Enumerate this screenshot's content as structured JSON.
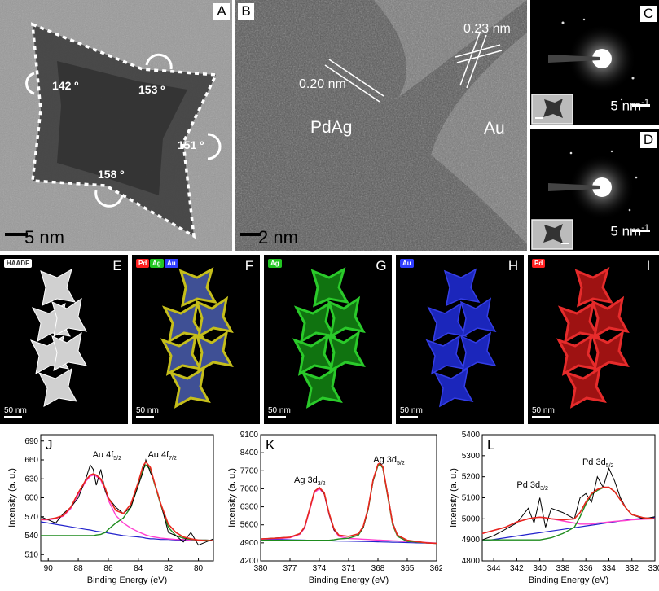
{
  "panels": {
    "A": {
      "label": "A",
      "scale": "5 nm",
      "angles": [
        "142 º",
        "153 º",
        "151 º",
        "158 º"
      ]
    },
    "B": {
      "label": "B",
      "scale": "2 nm",
      "phase_left": "PdAg",
      "phase_right": "Au",
      "d1": "0.20 nm",
      "d2": "0.23 nm"
    },
    "C": {
      "label": "C",
      "scale": "5 nm",
      "scale_sup": "-1"
    },
    "D": {
      "label": "D",
      "scale": "5 nm",
      "scale_sup": "-1"
    },
    "E": {
      "label": "E",
      "tag": "HAADF",
      "scale": "50 nm"
    },
    "F": {
      "label": "F",
      "tags": [
        "Pd",
        "Ag",
        "Au"
      ],
      "scale": "50 nm"
    },
    "G": {
      "label": "G",
      "tag": "Ag",
      "scale": "50 nm"
    },
    "H": {
      "label": "H",
      "tag": "Au",
      "scale": "50 nm"
    },
    "I": {
      "label": "I",
      "tag": "Pd",
      "scale": "50 nm"
    },
    "J": {
      "label": "J"
    },
    "K": {
      "label": "K"
    },
    "L": {
      "label": "L"
    }
  },
  "colors": {
    "ag_green": "#22c522",
    "au_blue": "#2f3dff",
    "pd_red": "#ff2020",
    "fit_red": "#e8281e",
    "peak_magenta": "#ff3fd0",
    "peak_green": "#1e8c1e",
    "bg_blue": "#2222cc"
  },
  "chart_data": [
    {
      "type": "line",
      "panel": "J",
      "xlabel": "Binding Energy (eV)",
      "ylabel": "Intensity (a. u.)",
      "xlim": [
        90.5,
        79
      ],
      "ylim": [
        500,
        700
      ],
      "xticks": [
        "90",
        "88",
        "86",
        "84",
        "82",
        "80"
      ],
      "yticks": [
        "510",
        "540",
        "570",
        "600",
        "630",
        "660",
        "690"
      ],
      "annotations": [
        {
          "text": "Au 4f",
          "sub": "5/2"
        },
        {
          "text": "Au 4f",
          "sub": "7/2"
        }
      ],
      "x": [
        90.5,
        90,
        89.5,
        89,
        88.5,
        88,
        87.5,
        87.2,
        87,
        86.8,
        86.5,
        86.2,
        86,
        85.5,
        85,
        84.5,
        84,
        83.7,
        83.5,
        83.2,
        83,
        82.5,
        82,
        81.5,
        81,
        80.5,
        80,
        79.5,
        79
      ],
      "raw": [
        570,
        565,
        560,
        575,
        585,
        600,
        630,
        652,
        645,
        620,
        645,
        610,
        600,
        585,
        575,
        585,
        620,
        640,
        660,
        640,
        630,
        590,
        545,
        540,
        530,
        545,
        525,
        530,
        535
      ],
      "fit": [
        566,
        566,
        568,
        572,
        585,
        608,
        628,
        636,
        638,
        636,
        630,
        615,
        600,
        580,
        575,
        590,
        625,
        650,
        657,
        648,
        630,
        590,
        558,
        545,
        538,
        535,
        533,
        532,
        532
      ],
      "peak1": [
        565,
        565,
        567,
        571,
        583,
        605,
        626,
        634,
        636,
        634,
        628,
        612,
        596,
        572,
        560,
        552,
        546,
        543,
        541,
        539,
        538,
        536,
        535,
        534,
        534,
        533,
        533,
        533,
        532
      ],
      "peak2": [
        540,
        540,
        540,
        540,
        540,
        540,
        540,
        540,
        540,
        541,
        542,
        545,
        550,
        560,
        568,
        585,
        620,
        645,
        652,
        645,
        628,
        588,
        553,
        540,
        536,
        534,
        533,
        533,
        532
      ],
      "background": [
        562,
        560,
        558,
        556,
        554,
        552,
        550,
        549,
        548,
        547,
        546,
        545,
        544,
        542,
        540,
        539,
        538,
        537,
        536,
        535,
        535,
        534,
        534,
        533,
        533,
        533,
        532,
        532,
        532
      ]
    },
    {
      "type": "line",
      "panel": "K",
      "xlabel": "Binding Energy (eV)",
      "ylabel": "Intensity (a. u.)",
      "xlim": [
        380,
        362
      ],
      "ylim": [
        4200,
        9100
      ],
      "xticks": [
        "380",
        "377",
        "374",
        "371",
        "368",
        "365",
        "362"
      ],
      "yticks": [
        "4200",
        "4900",
        "5600",
        "6300",
        "7000",
        "7700",
        "8400",
        "9100"
      ],
      "annotations": [
        {
          "text": "Ag 3d",
          "sub": "3/2"
        },
        {
          "text": "Ag 3d",
          "sub": "5/2"
        }
      ],
      "x": [
        380,
        379,
        378,
        377,
        376,
        375.5,
        375,
        374.5,
        374,
        373.5,
        373,
        372.5,
        372,
        371,
        370,
        369.5,
        369,
        368.5,
        368,
        367.8,
        367.5,
        367,
        366.5,
        366,
        365,
        364,
        363,
        362
      ],
      "raw": [
        5050,
        5080,
        5100,
        5120,
        5250,
        5500,
        6200,
        6900,
        7050,
        6800,
        6000,
        5400,
        5200,
        5150,
        5250,
        5500,
        6200,
        7300,
        7950,
        8000,
        7850,
        6800,
        5700,
        5200,
        5000,
        4950,
        4900,
        4880
      ],
      "fit": [
        5050,
        5070,
        5090,
        5120,
        5260,
        5520,
        6200,
        6900,
        7050,
        6850,
        6050,
        5450,
        5200,
        5150,
        5250,
        5550,
        6250,
        7350,
        7950,
        8000,
        7850,
        6750,
        5650,
        5200,
        5000,
        4950,
        4900,
        4880
      ],
      "peak1": [
        5050,
        5060,
        5070,
        5100,
        5230,
        5480,
        6150,
        6850,
        7000,
        6800,
        6000,
        5400,
        5150,
        5070,
        5050,
        5040,
        5030,
        5020,
        5010,
        5005,
        5000,
        4990,
        4980,
        4970,
        4950,
        4930,
        4910,
        4890
      ],
      "peak2": [
        5000,
        5000,
        5000,
        5000,
        5000,
        5000,
        5000,
        5000,
        5000,
        5000,
        5000,
        5020,
        5050,
        5080,
        5200,
        5500,
        6200,
        7300,
        7900,
        7950,
        7800,
        6700,
        5600,
        5150,
        4960,
        4930,
        4900,
        4880
      ],
      "background": [
        5050,
        5040,
        5030,
        5020,
        5010,
        5005,
        5000,
        4995,
        4990,
        4985,
        4980,
        4975,
        4970,
        4965,
        4960,
        4955,
        4950,
        4945,
        4940,
        4938,
        4935,
        4930,
        4925,
        4920,
        4910,
        4900,
        4890,
        4880
      ]
    },
    {
      "type": "line",
      "panel": "L",
      "xlabel": "Binding Energy (eV)",
      "ylabel": "Intensity (a. u.)",
      "xlim": [
        345,
        330
      ],
      "ylim": [
        4800,
        5400
      ],
      "xticks": [
        "344",
        "342",
        "340",
        "338",
        "336",
        "334",
        "332",
        "330"
      ],
      "yticks": [
        "4800",
        "4900",
        "5000",
        "5100",
        "5200",
        "5300",
        "5400"
      ],
      "annotations": [
        {
          "text": "Pd 3d",
          "sub": "3/2"
        },
        {
          "text": "Pd 3d",
          "sub": "5/2"
        }
      ],
      "x": [
        345,
        344,
        343,
        342,
        341,
        340.5,
        340,
        339.5,
        339,
        338,
        337,
        336.5,
        336,
        335.5,
        335,
        334.5,
        334,
        333.5,
        333,
        332.5,
        332,
        331,
        330
      ],
      "raw": [
        4900,
        4920,
        4950,
        4980,
        5050,
        4980,
        5100,
        4960,
        5050,
        5030,
        5000,
        5100,
        5120,
        5080,
        5200,
        5150,
        5240,
        5180,
        5100,
        5050,
        5020,
        5000,
        5010
      ],
      "fit": [
        4930,
        4945,
        4960,
        4985,
        5000,
        5005,
        5008,
        5005,
        5000,
        4995,
        5000,
        5030,
        5080,
        5120,
        5140,
        5150,
        5150,
        5130,
        5090,
        5050,
        5020,
        5005,
        5000
      ],
      "peak1": [
        4930,
        4945,
        4960,
        4985,
        5000,
        5005,
        5008,
        5005,
        5000,
        4990,
        4980,
        4975,
        4975,
        4975,
        4980,
        4982,
        4985,
        4988,
        4990,
        4992,
        4995,
        4998,
        5000
      ],
      "peak2": [
        4900,
        4900,
        4900,
        4900,
        4900,
        4900,
        4900,
        4905,
        4910,
        4930,
        4960,
        5010,
        5070,
        5115,
        5135,
        5148,
        5150,
        5130,
        5090,
        5050,
        5020,
        5005,
        5000
      ],
      "background": [
        4895,
        4902,
        4910,
        4918,
        4926,
        4930,
        4934,
        4938,
        4942,
        4950,
        4958,
        4962,
        4966,
        4970,
        4974,
        4978,
        4982,
        4986,
        4990,
        4994,
        4998,
        5002,
        5006
      ]
    }
  ]
}
